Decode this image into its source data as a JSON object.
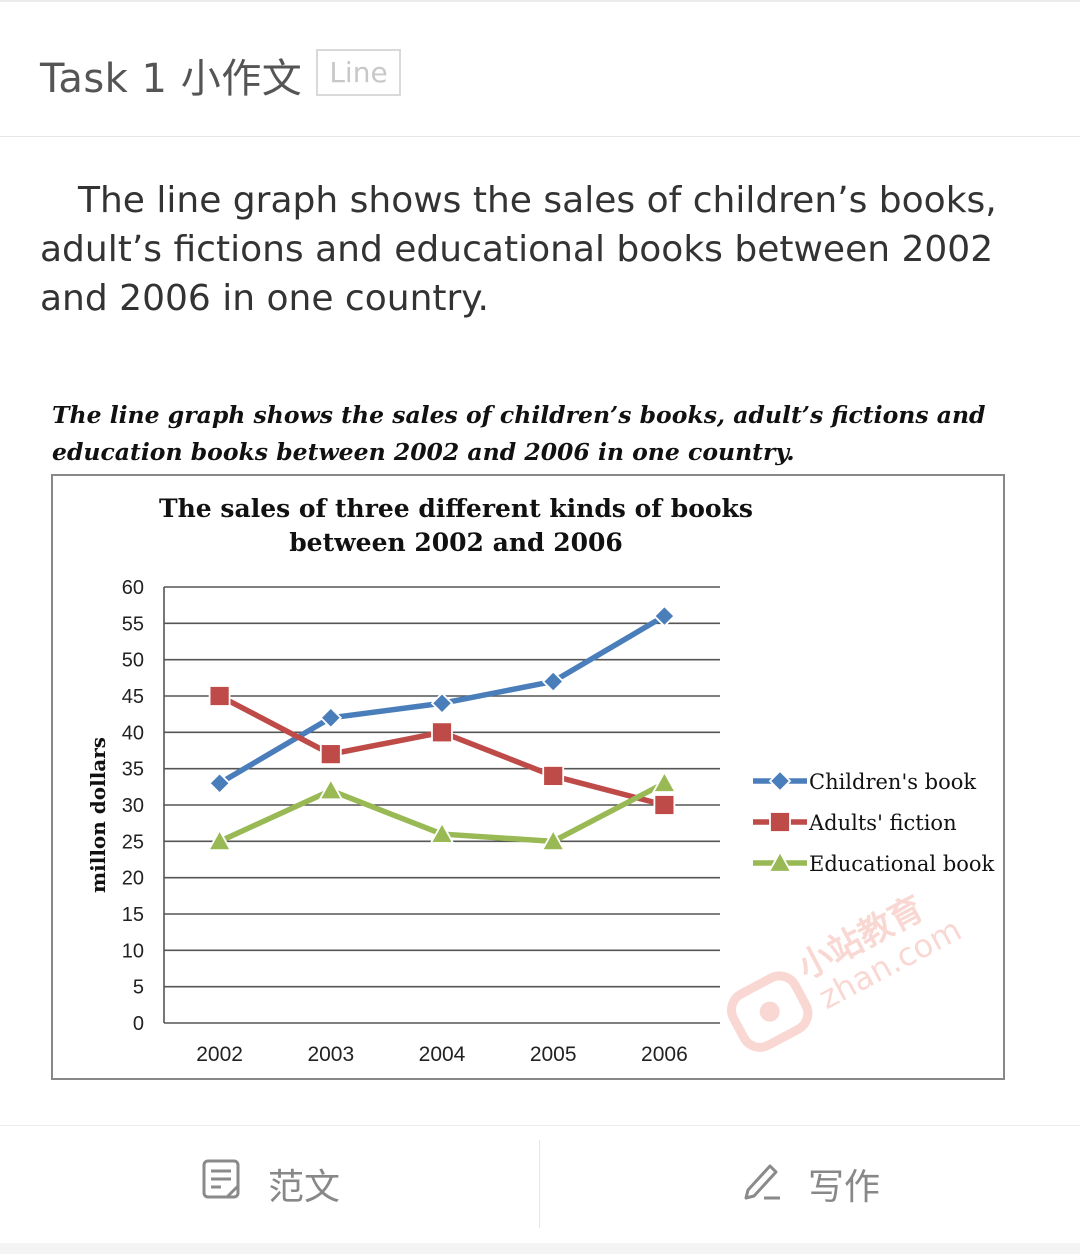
{
  "header": {
    "title": "Task 1 小作文",
    "tag": "Line"
  },
  "intro": "The line graph shows the sales of children’s books, adult’s fictions and educational books between 2002 and 2006 in one country.",
  "figure": {
    "caption": "The line graph shows the sales of children’s books, adult’s fictions and education books between 2002 and 2006 in one country."
  },
  "chart_data": {
    "type": "line",
    "title_line1": "The sales of three different kinds of books",
    "title_line2": "between 2002 and 2006",
    "ylabel": "millon dollars",
    "xlabel": "",
    "categories": [
      "2002",
      "2003",
      "2004",
      "2005",
      "2006"
    ],
    "ylim": [
      0,
      60
    ],
    "yticks": [
      0,
      5,
      10,
      15,
      20,
      25,
      30,
      35,
      40,
      45,
      50,
      55,
      60
    ],
    "grid": true,
    "legend_position": "right",
    "series": [
      {
        "name": "Children's book",
        "values": [
          33,
          42,
          44,
          47,
          56
        ],
        "color": "#4a7ebb",
        "marker": "diamond"
      },
      {
        "name": "Adults' fiction",
        "values": [
          45,
          37,
          40,
          34,
          30
        ],
        "color": "#be4b48",
        "marker": "square"
      },
      {
        "name": "Educational book",
        "values": [
          25,
          32,
          26,
          25,
          33
        ],
        "color": "#98b954",
        "marker": "triangle"
      }
    ]
  },
  "watermark": "小站教育 zhan.com",
  "bottom_bar": {
    "essay_label": "范文",
    "write_label": "写作"
  }
}
